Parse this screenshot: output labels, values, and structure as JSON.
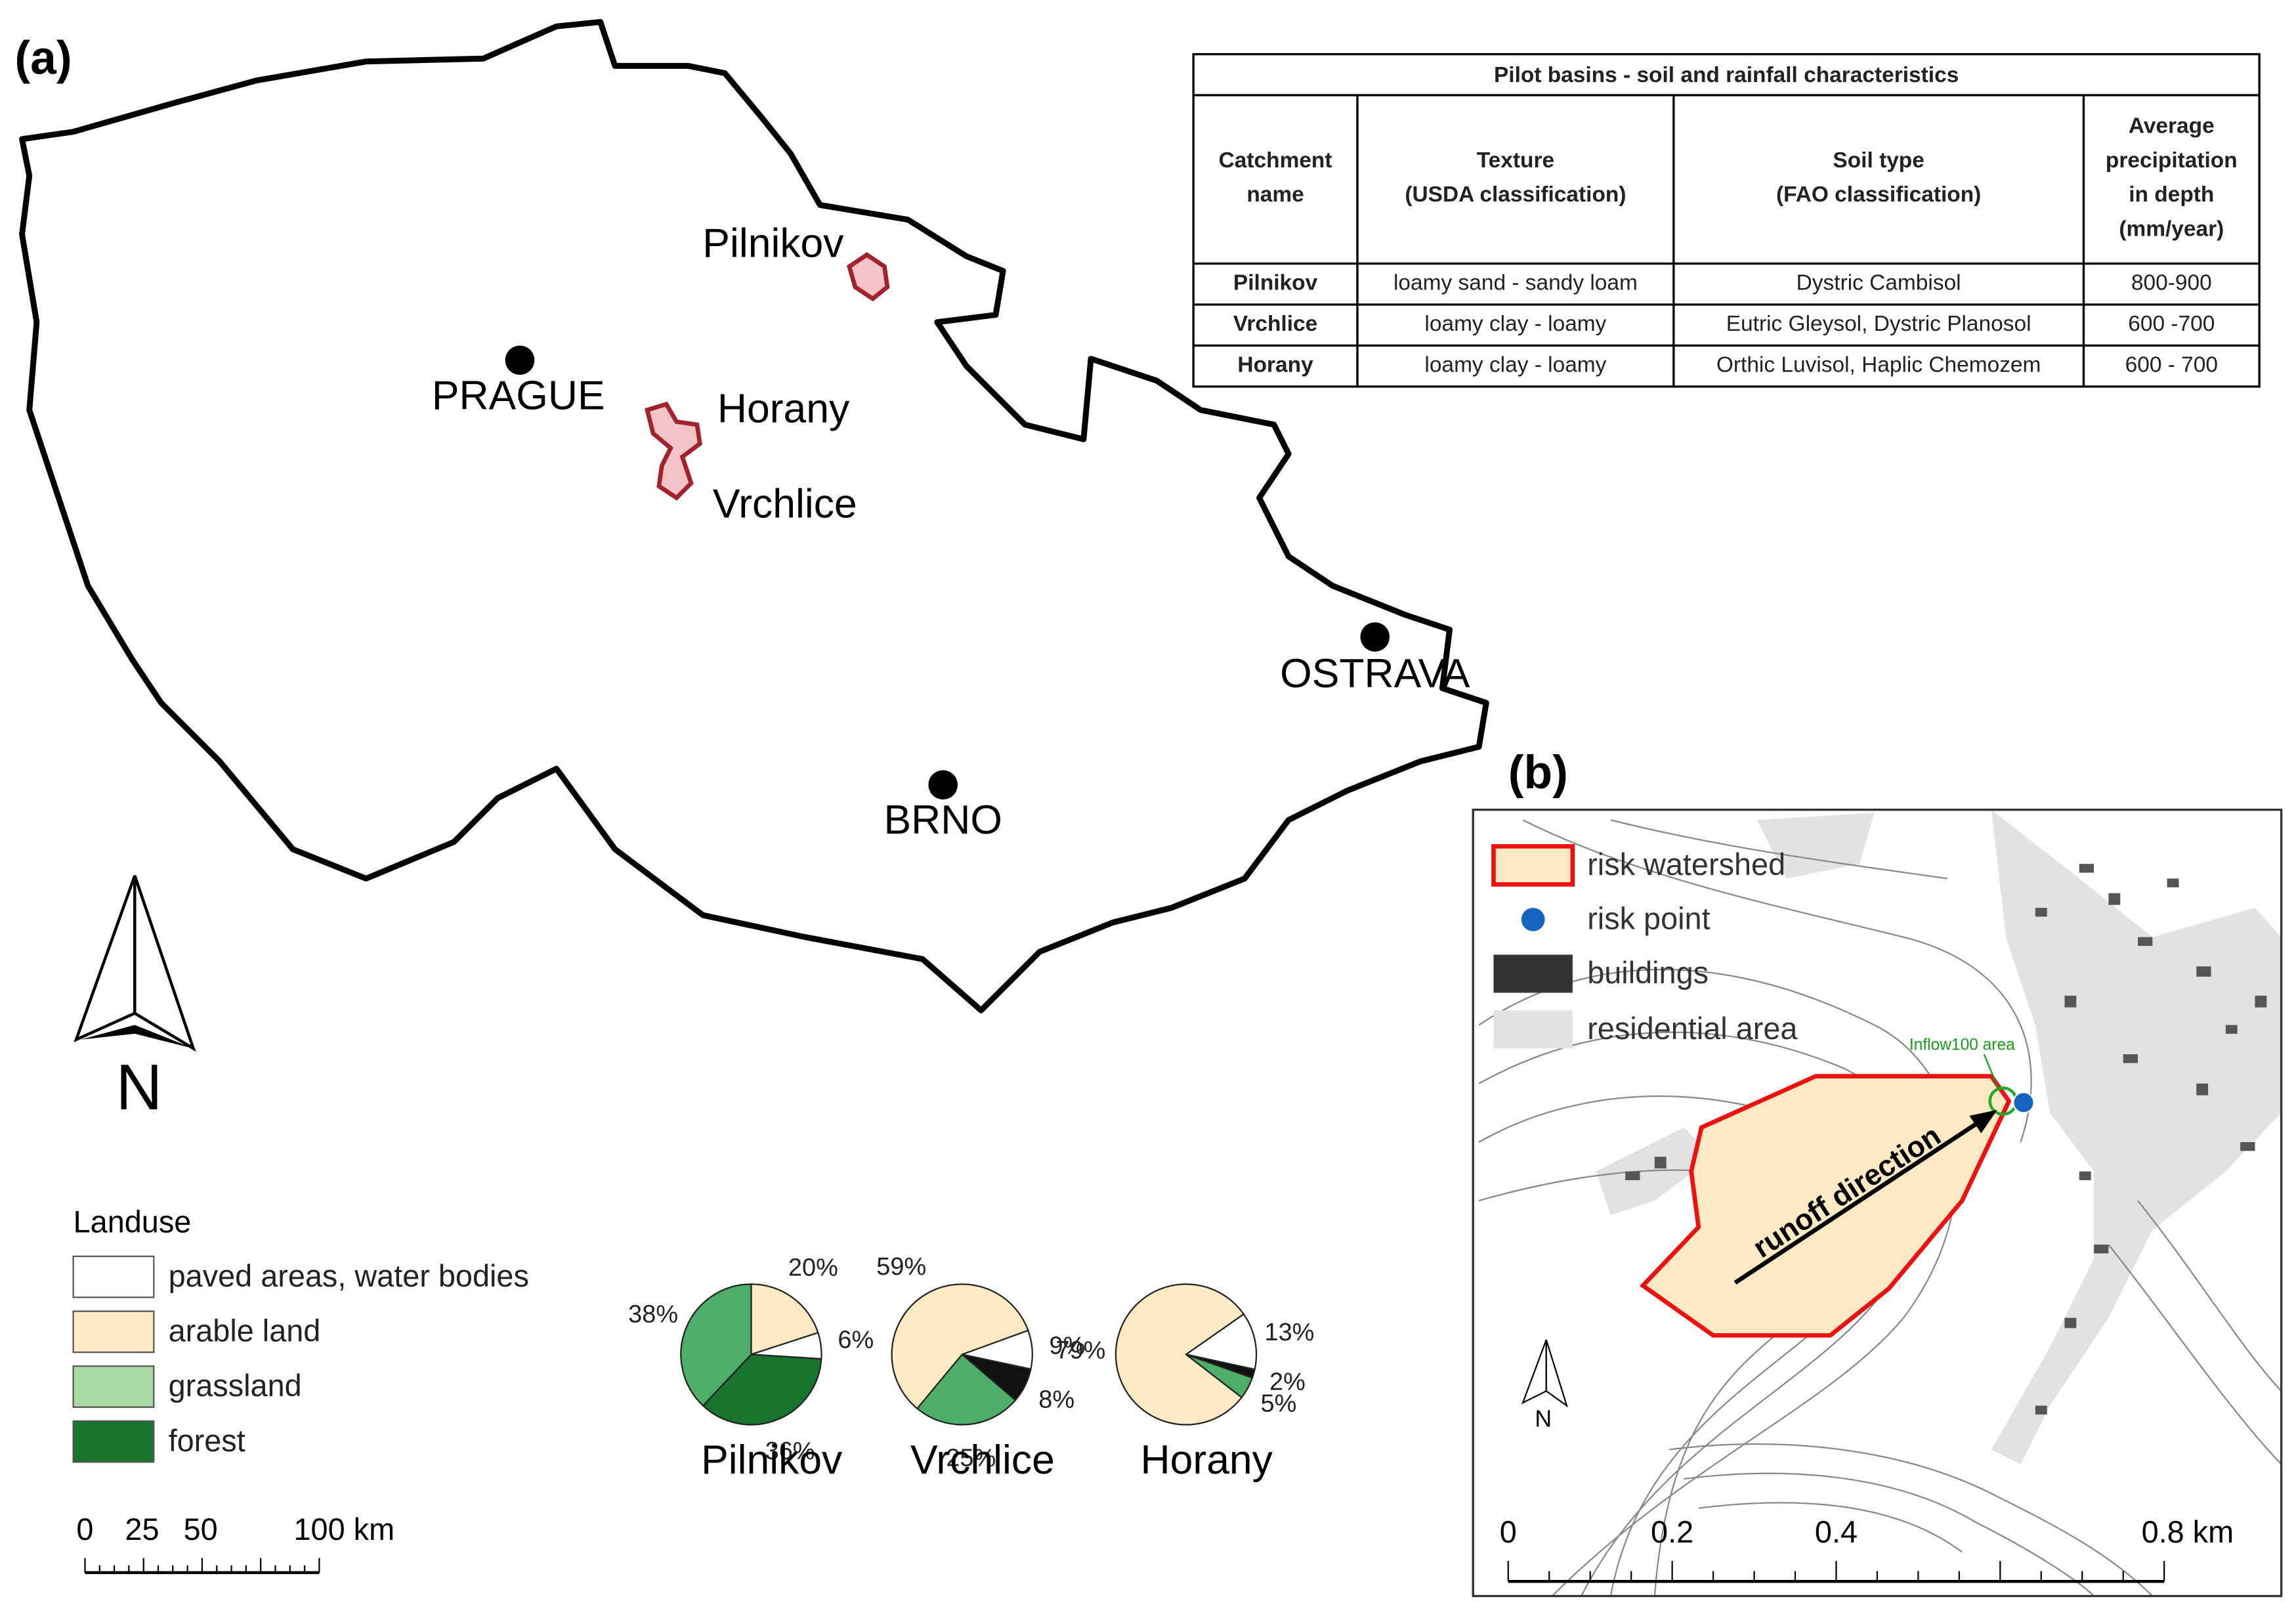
{
  "panel_a": {
    "label": "(a)",
    "cities": [
      "PRAGUE",
      "OSTRAVA",
      "BRNO"
    ],
    "catchments": [
      "Pilnikov",
      "Horany",
      "Vrchlice"
    ],
    "north": "N",
    "table": {
      "title": "Pilot basins - soil and rainfall characteristics",
      "header": [
        [
          "Catchment",
          "name"
        ],
        [
          "Texture",
          "(USDA classification)"
        ],
        [
          "Soil type",
          "(FAO classification)"
        ],
        [
          "Average",
          "precipitation",
          "in depth",
          "(mm/year)"
        ]
      ],
      "rows": [
        [
          "Pilnikov",
          "loamy sand - sandy loam",
          "Dystric Cambisol",
          "800-900"
        ],
        [
          "Vrchlice",
          "loamy clay - loamy",
          "Eutric Gleysol, Dystric Planosol",
          "600 -700"
        ],
        [
          "Horany",
          "loamy clay - loamy",
          "Orthic Luvisol, Haplic Chemozem",
          "600 - 700"
        ]
      ]
    },
    "landuse_legend": {
      "title": "Landuse",
      "items": [
        {
          "label": "paved areas, water bodies",
          "color": "#ffffff"
        },
        {
          "label": "arable land",
          "color": "#fde9c4"
        },
        {
          "label": "grassland",
          "color": "#a9dba4"
        },
        {
          "label": "forest",
          "color": "#17742c"
        }
      ]
    },
    "pies": [
      {
        "name": "Pilnikov",
        "values": [
          20,
          6,
          36,
          38
        ],
        "value_labels": [
          "20%",
          "6%",
          "36%",
          "38%"
        ],
        "colors": [
          "#fde9c4",
          "#ffffff",
          "#17742c",
          "#4cae68"
        ]
      },
      {
        "name": "Vrchlice",
        "values": [
          9,
          8,
          25,
          59
        ],
        "value_labels": [
          "9%",
          "8%",
          "25%",
          "59%"
        ],
        "colors": [
          "#ffffff",
          "#111111",
          "#4cae68",
          "#fde9c4"
        ]
      },
      {
        "name": "Horany",
        "values": [
          13,
          2,
          5,
          79
        ],
        "value_labels": [
          "13%",
          "2%",
          "5%",
          "79%"
        ],
        "colors": [
          "#ffffff",
          "#111111",
          "#4cae68",
          "#fde9c4"
        ]
      }
    ],
    "scale_bar": [
      "0",
      "25",
      "50",
      "100 km"
    ]
  },
  "panel_b": {
    "label": "(b)",
    "legend": [
      "risk watershed",
      "risk point",
      "buildings",
      "residential area"
    ],
    "inflow_label": "Inflow100 area",
    "arrow_label": "runoff direction",
    "north": "N",
    "scale_bar": [
      "0",
      "0.2",
      "0.4",
      "0.8 km"
    ]
  }
}
